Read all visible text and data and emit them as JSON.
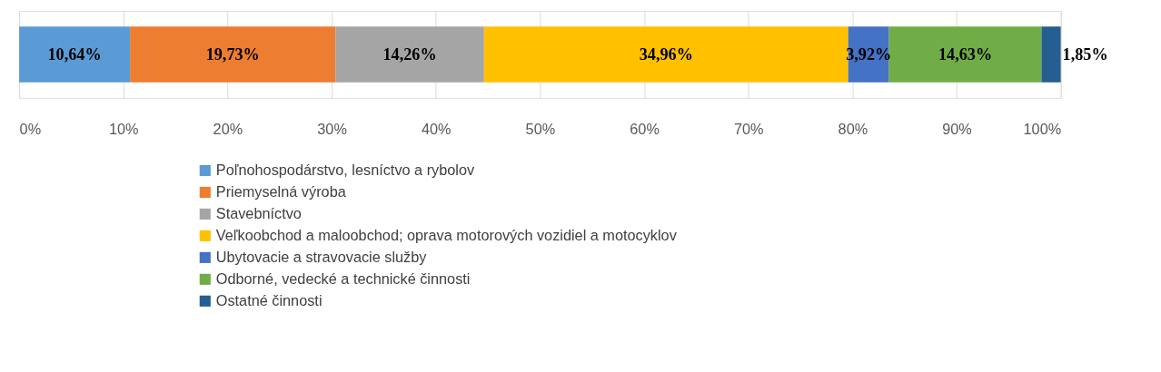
{
  "chart_data": {
    "type": "bar",
    "orientation": "horizontal",
    "stacked": true,
    "categories": [
      null
    ],
    "series": [
      {
        "name": "Poľnohospodárstvo, lesníctvo a rybolov",
        "color": "#5b9bd5",
        "values": [
          10.64
        ],
        "value_labels": [
          "10,64%"
        ]
      },
      {
        "name": "Priemyselná výroba",
        "color": "#ed7d31",
        "values": [
          19.73
        ],
        "value_labels": [
          "19,73%"
        ]
      },
      {
        "name": "Stavebníctvo",
        "color": "#a5a5a5",
        "values": [
          14.26
        ],
        "value_labels": [
          "14,26%"
        ]
      },
      {
        "name": "Veľkoobchod a maloobchod; oprava motorových vozidiel a motocyklov",
        "color": "#ffc000",
        "values": [
          34.96
        ],
        "value_labels": [
          "34,96%"
        ]
      },
      {
        "name": "Ubytovacie a stravovacie služby",
        "color": "#4472c4",
        "values": [
          3.92
        ],
        "value_labels": [
          "3,92%"
        ]
      },
      {
        "name": "Odborné, vedecké a technické činnosti",
        "color": "#70ad47",
        "values": [
          14.63
        ],
        "value_labels": [
          "14,63%"
        ]
      },
      {
        "name": "Ostatné činnosti",
        "color": "#255e91",
        "values": [
          1.85
        ],
        "value_labels": [
          "1,85%"
        ]
      }
    ],
    "xlim": [
      0,
      100
    ],
    "xticks": [
      {
        "value": 0,
        "label": "0%"
      },
      {
        "value": 10,
        "label": "10%"
      },
      {
        "value": 20,
        "label": "20%"
      },
      {
        "value": 30,
        "label": "30%"
      },
      {
        "value": 40,
        "label": "40%"
      },
      {
        "value": 50,
        "label": "50%"
      },
      {
        "value": 60,
        "label": "60%"
      },
      {
        "value": 70,
        "label": "70%"
      },
      {
        "value": 80,
        "label": "80%"
      },
      {
        "value": 90,
        "label": "90%"
      },
      {
        "value": 100,
        "label": "100%"
      }
    ],
    "grid": "x",
    "legend": "bottom"
  }
}
